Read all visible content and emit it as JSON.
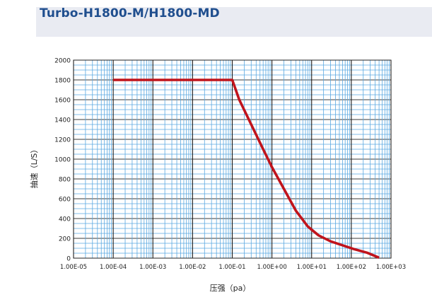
{
  "title": "Turbo-H1800-M/H1800-MD",
  "chart_data": {
    "type": "line",
    "title": "Turbo-H1800-M/H1800-MD",
    "xlabel": "压强（pa）",
    "ylabel": "抽速（L/S）",
    "x_scale": "log",
    "xlim": [
      1e-05,
      1000
    ],
    "ylim": [
      0,
      2000
    ],
    "x_tick_labels": [
      "1.00E-05",
      "1.00E-04",
      "1.00E-03",
      "1.00E-02",
      "1.00E-01",
      "1.00E+00",
      "1.00E+01",
      "1.00E+02",
      "1.00E+03"
    ],
    "y_ticks": [
      0,
      200,
      400,
      600,
      800,
      1000,
      1200,
      1400,
      1600,
      1800,
      2000
    ],
    "grid": true,
    "colors": {
      "line": "#c0141c",
      "grid": "#5aa8e0",
      "decade_grid": "#1a1a1a"
    },
    "series": [
      {
        "x": [
          0.0001,
          0.1,
          0.15,
          0.3,
          0.6,
          1,
          2,
          4,
          8,
          15,
          30,
          60,
          120,
          250,
          500
        ],
        "y": [
          1800,
          1800,
          1600,
          1350,
          1100,
          920,
          700,
          480,
          320,
          230,
          170,
          130,
          90,
          55,
          5
        ]
      }
    ]
  }
}
